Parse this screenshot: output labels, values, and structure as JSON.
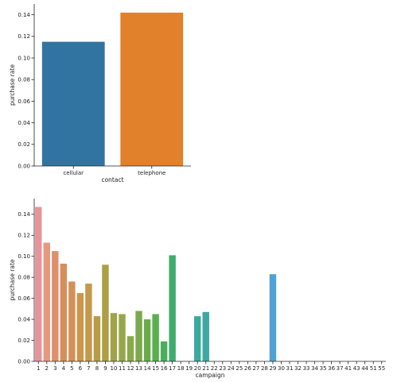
{
  "chart_data": [
    {
      "type": "bar",
      "title": "",
      "xlabel": "contact",
      "ylabel": "purchase rate",
      "categories": [
        "cellular",
        "telephone"
      ],
      "values": [
        0.115,
        0.142
      ],
      "colors": [
        "#3274a1",
        "#e1812c"
      ],
      "ylim": [
        0,
        0.15
      ],
      "yticks": [
        0.0,
        0.02,
        0.04,
        0.06,
        0.08,
        0.1,
        0.12,
        0.14
      ],
      "ytick_labels": [
        "0.00",
        "0.02",
        "0.04",
        "0.06",
        "0.08",
        "0.10",
        "0.12",
        "0.14"
      ],
      "grid": false
    },
    {
      "type": "bar",
      "title": "",
      "xlabel": "campaign",
      "ylabel": "purchase rate",
      "categories": [
        "1",
        "2",
        "3",
        "4",
        "5",
        "6",
        "7",
        "8",
        "9",
        "10",
        "11",
        "12",
        "13",
        "14",
        "15",
        "16",
        "17",
        "18",
        "19",
        "20",
        "21",
        "22",
        "23",
        "24",
        "25",
        "26",
        "27",
        "28",
        "29",
        "30",
        "31",
        "32",
        "33",
        "34",
        "35",
        "36",
        "37",
        "41",
        "43",
        "44",
        "51",
        "55"
      ],
      "values": [
        0.147,
        0.113,
        0.105,
        0.093,
        0.076,
        0.065,
        0.074,
        0.043,
        0.092,
        0.046,
        0.045,
        0.024,
        0.048,
        0.04,
        0.045,
        0.019,
        0.101,
        0,
        0,
        0.043,
        0.047,
        0,
        0,
        0,
        0,
        0,
        0,
        0,
        0.083,
        0,
        0,
        0,
        0,
        0,
        0,
        0,
        0,
        0,
        0,
        0,
        0,
        0
      ],
      "colors": [
        "#e8939b",
        "#e59a80",
        "#df8f6b",
        "#d68e5c",
        "#d39057",
        "#ce954c",
        "#c4994c",
        "#b89b47",
        "#ac9f44",
        "#a0a34a",
        "#95a74a",
        "#89aa4c",
        "#7ba94d",
        "#6aab4b",
        "#5aaf4e",
        "#4cad5d",
        "#3fac6c",
        "#3aad7c",
        "#3aac8d",
        "#3aab9b",
        "#3fa8a3",
        "#3ea7ab",
        "#3ea7b3",
        "#40a7bd",
        "#43a5c6",
        "#48a2cd",
        "#4d9fd3",
        "#519cd8",
        "#4fa2d5",
        "#5b98dd",
        "#6b8fe0",
        "#7d89e2",
        "#8f82e3",
        "#a07de1",
        "#b27adb",
        "#c276d3",
        "#cf71c8",
        "#d76fbd",
        "#de71b1",
        "#e273a6",
        "#e5779b",
        "#e87d93"
      ],
      "ylim": [
        0,
        0.155
      ],
      "yticks": [
        0.0,
        0.02,
        0.04,
        0.06,
        0.08,
        0.1,
        0.12,
        0.14
      ],
      "ytick_labels": [
        "0.00",
        "0.02",
        "0.04",
        "0.06",
        "0.08",
        "0.10",
        "0.12",
        "0.14"
      ],
      "grid": false
    }
  ]
}
